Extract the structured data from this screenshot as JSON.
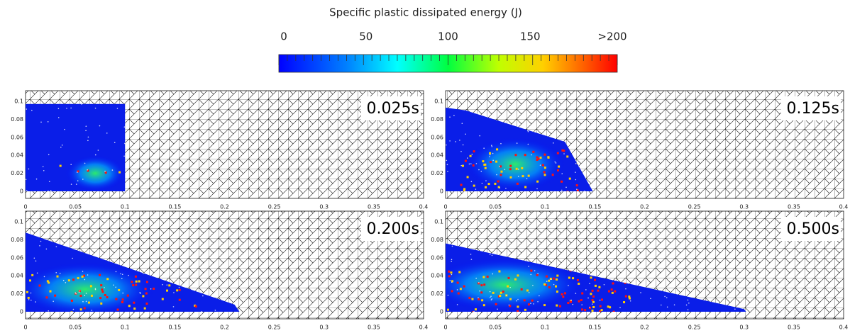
{
  "colorbar": {
    "title": "Specific plastic dissipated energy (J)",
    "ticks": [
      "0",
      "50",
      "100",
      "150",
      ">200"
    ]
  },
  "axes": {
    "xticks": [
      "0",
      "0.05",
      "0.1",
      "0.15",
      "0.2",
      "0.25",
      "0.3",
      "0.35",
      "0.4"
    ],
    "yticks": [
      "0",
      "0.02",
      "0.04",
      "0.06",
      "0.08",
      "0.1"
    ]
  },
  "panels": [
    {
      "time": "0.025s"
    },
    {
      "time": "0.125s"
    },
    {
      "time": "0.200s"
    },
    {
      "time": "0.500s"
    }
  ]
}
